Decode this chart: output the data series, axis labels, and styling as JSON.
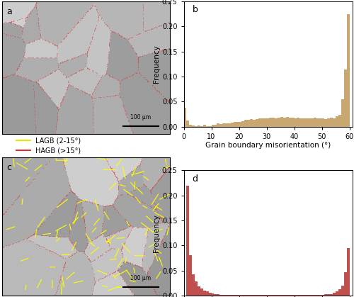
{
  "fig_width": 5.0,
  "fig_height": 4.19,
  "dpi": 100,
  "bar_color_b": "#c8a870",
  "bar_color_d": "#c0504d",
  "ylim": [
    0,
    0.25
  ],
  "yticks": [
    0.0,
    0.05,
    0.1,
    0.15,
    0.2,
    0.25
  ],
  "xlim": [
    0,
    61
  ],
  "xticks": [
    0,
    10,
    20,
    30,
    40,
    50,
    60
  ],
  "xlabel": "Grain boundary misorientation (°)",
  "ylabel": "Frequency",
  "legend_labels": [
    "LAGB (2-15°)",
    "HAGB (>15°)"
  ],
  "legend_colors": [
    "#e8e800",
    "#e03030"
  ],
  "hist_b_values": [
    0.038,
    0.012,
    0.003,
    0.002,
    0.001,
    0.002,
    0.001,
    0.003,
    0.001,
    0.001,
    0.003,
    0.003,
    0.006,
    0.005,
    0.006,
    0.007,
    0.007,
    0.008,
    0.009,
    0.009,
    0.01,
    0.011,
    0.013,
    0.014,
    0.015,
    0.014,
    0.015,
    0.016,
    0.016,
    0.017,
    0.017,
    0.018,
    0.018,
    0.017,
    0.018,
    0.019,
    0.018,
    0.019,
    0.018,
    0.018,
    0.017,
    0.018,
    0.017,
    0.016,
    0.017,
    0.016,
    0.017,
    0.018,
    0.016,
    0.017,
    0.016,
    0.015,
    0.017,
    0.018,
    0.016,
    0.02,
    0.023,
    0.055,
    0.114,
    0.224
  ],
  "hist_d_values": [
    0.0,
    0.22,
    0.08,
    0.042,
    0.028,
    0.018,
    0.014,
    0.01,
    0.008,
    0.006,
    0.004,
    0.003,
    0.002,
    0.001,
    0.001,
    0.001,
    0.001,
    0.001,
    0.001,
    0.001,
    0.001,
    0.001,
    0.001,
    0.001,
    0.001,
    0.001,
    0.001,
    0.001,
    0.001,
    0.001,
    0.001,
    0.001,
    0.001,
    0.001,
    0.001,
    0.001,
    0.001,
    0.001,
    0.001,
    0.001,
    0.001,
    0.001,
    0.001,
    0.001,
    0.001,
    0.001,
    0.001,
    0.001,
    0.001,
    0.001,
    0.001,
    0.002,
    0.002,
    0.003,
    0.005,
    0.008,
    0.012,
    0.02,
    0.046,
    0.095
  ],
  "scale_bar_text": "100 μm",
  "img_gray": 185,
  "panel_label_fontsize": 9,
  "axis_fontsize": 7,
  "xlabel_fontsize": 7.5
}
